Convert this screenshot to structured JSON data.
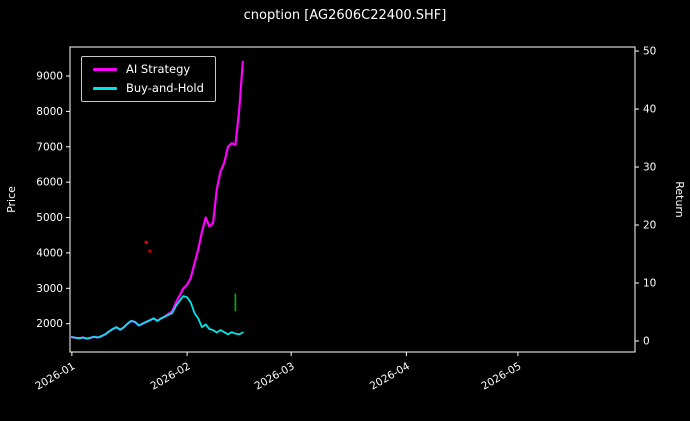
{
  "window": {
    "title": "cnoption [AG2606C22400.SHF]"
  },
  "legend": {
    "items": [
      {
        "label": "AI Strategy",
        "color": "#ff00ff"
      },
      {
        "label": "Buy-and-Hold",
        "color": "#00e5e5"
      }
    ]
  },
  "chart_data": {
    "type": "line",
    "title": "cnoption [AG2606C22400.SHF]",
    "xlabel": "",
    "ylabel_left": "Price",
    "ylabel_right": "Return",
    "background": "#000000",
    "text_color": "#ffffff",
    "frame_color": "#ffffff",
    "grid": false,
    "legend_position": "upper-left",
    "x_unit": "days since 2026-01-01",
    "xlim": [
      -0.5,
      151.5
    ],
    "ylim_left": [
      1200,
      9820
    ],
    "ylim_right": [
      -1.9,
      50.7
    ],
    "x_ticks": [
      {
        "day": 0,
        "label": "2026-01"
      },
      {
        "day": 31,
        "label": "2026-02"
      },
      {
        "day": 59,
        "label": "2026-03"
      },
      {
        "day": 90,
        "label": "2026-04"
      },
      {
        "day": 120,
        "label": "2026-05"
      }
    ],
    "y_ticks_left": [
      2000,
      3000,
      4000,
      5000,
      6000,
      7000,
      8000,
      9000
    ],
    "y_ticks_right": [
      0,
      10,
      20,
      30,
      40,
      50
    ],
    "series": [
      {
        "name": "AI Strategy",
        "color": "#ff00ff",
        "width": 2.2,
        "x": [
          0,
          1,
          2,
          3,
          4,
          5,
          6,
          7,
          8,
          9,
          10,
          11,
          12,
          13,
          14,
          15,
          16,
          17,
          18,
          19,
          20,
          21,
          22,
          23,
          24,
          25,
          26,
          27,
          28,
          29,
          30,
          31,
          32,
          33,
          34,
          35,
          36,
          37,
          38,
          39,
          40,
          41,
          42,
          43,
          44,
          45,
          46
        ],
        "y": [
          1620,
          1600,
          1590,
          1610,
          1580,
          1600,
          1630,
          1610,
          1650,
          1700,
          1780,
          1850,
          1900,
          1830,
          1900,
          2000,
          2080,
          2050,
          1950,
          2000,
          2050,
          2100,
          2150,
          2080,
          2150,
          2200,
          2280,
          2350,
          2600,
          2800,
          3000,
          3100,
          3300,
          3700,
          4100,
          4600,
          5000,
          4750,
          4850,
          5800,
          6300,
          6550,
          7000,
          7100,
          7050,
          8000,
          9400
        ]
      },
      {
        "name": "Buy-and-Hold",
        "color": "#00e5e5",
        "width": 1.8,
        "x": [
          0,
          1,
          2,
          3,
          4,
          5,
          6,
          7,
          8,
          9,
          10,
          11,
          12,
          13,
          14,
          15,
          16,
          17,
          18,
          19,
          20,
          21,
          22,
          23,
          24,
          25,
          26,
          27,
          28,
          29,
          30,
          31,
          32,
          33,
          34,
          35,
          36,
          37,
          38,
          39,
          40,
          41,
          42,
          43,
          44,
          45,
          46
        ],
        "y": [
          1620,
          1600,
          1590,
          1610,
          1580,
          1600,
          1630,
          1610,
          1650,
          1700,
          1780,
          1850,
          1900,
          1830,
          1900,
          2000,
          2080,
          2050,
          1950,
          2000,
          2050,
          2100,
          2150,
          2080,
          2150,
          2200,
          2250,
          2300,
          2500,
          2650,
          2780,
          2750,
          2600,
          2300,
          2150,
          1900,
          1980,
          1850,
          1820,
          1750,
          1820,
          1760,
          1700,
          1760,
          1720,
          1700,
          1750
        ]
      }
    ],
    "markers": [
      {
        "type": "dot",
        "color": "#ff0000",
        "day": 20,
        "price": 4300
      },
      {
        "type": "dot",
        "color": "#cc0000",
        "day": 21,
        "price": 4050
      },
      {
        "type": "segment",
        "color": "#00b400",
        "day": 44,
        "price_from": 2350,
        "price_to": 2850
      }
    ]
  }
}
